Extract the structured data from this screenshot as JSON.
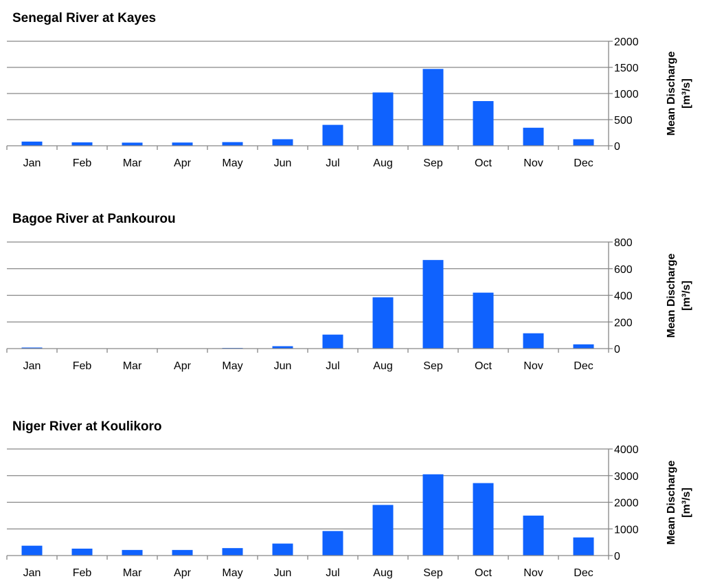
{
  "chart_data": [
    {
      "type": "bar",
      "title": "Senegal River at Kayes",
      "categories": [
        "Jan",
        "Feb",
        "Mar",
        "Apr",
        "May",
        "Jun",
        "Jul",
        "Aug",
        "Sep",
        "Oct",
        "Nov",
        "Dec"
      ],
      "values": [
        80,
        65,
        60,
        62,
        70,
        125,
        400,
        1020,
        1470,
        855,
        345,
        125
      ],
      "ylabel_lines": [
        "Mean Discharge",
        "[m³/s]"
      ],
      "ylim": [
        0,
        2000
      ],
      "yticks": [
        "0",
        "500",
        "1000",
        "1500",
        "2000"
      ],
      "grid": true,
      "yaxis_side": "right",
      "bar_color": "#0f62fe"
    },
    {
      "type": "bar",
      "title": "Bagoe River at Pankourou",
      "categories": [
        "Jan",
        "Feb",
        "Mar",
        "Apr",
        "May",
        "Jun",
        "Jul",
        "Aug",
        "Sep",
        "Oct",
        "Nov",
        "Dec"
      ],
      "values": [
        8,
        2,
        1,
        1,
        5,
        18,
        105,
        385,
        665,
        420,
        115,
        32
      ],
      "ylabel_lines": [
        "Mean Discharge",
        "[m³/s]"
      ],
      "ylim": [
        0,
        800
      ],
      "yticks": [
        "0",
        "200",
        "400",
        "600",
        "800"
      ],
      "grid": true,
      "yaxis_side": "right",
      "bar_color": "#0f62fe"
    },
    {
      "type": "bar",
      "title": "Niger River at Koulikoro",
      "categories": [
        "Jan",
        "Feb",
        "Mar",
        "Apr",
        "May",
        "Jun",
        "Jul",
        "Aug",
        "Sep",
        "Oct",
        "Nov",
        "Dec"
      ],
      "values": [
        370,
        260,
        210,
        210,
        280,
        450,
        920,
        1900,
        3050,
        2720,
        1500,
        680
      ],
      "ylabel_lines": [
        "Mean Discharge",
        "[m³/s]"
      ],
      "ylim": [
        0,
        4000
      ],
      "yticks": [
        "0",
        "1000",
        "2000",
        "3000",
        "4000"
      ],
      "grid": true,
      "yaxis_side": "right",
      "bar_color": "#0f62fe"
    }
  ]
}
